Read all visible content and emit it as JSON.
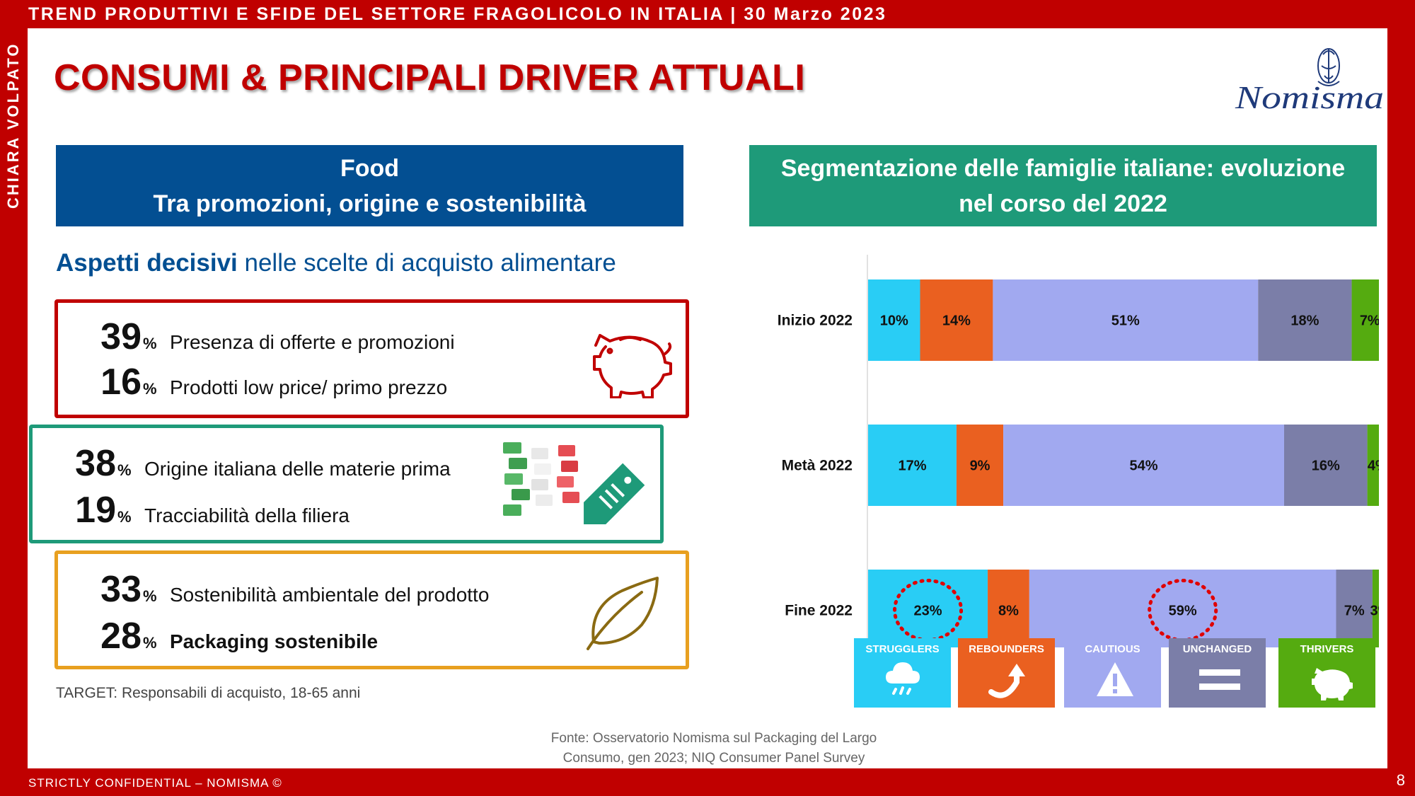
{
  "header": {
    "top_title": "TREND PRODUTTIVI E SFIDE DEL SETTORE FRAGOLICOLO IN ITALIA | 30 Marzo 2023",
    "side_label": "CHIARA VOLPATO",
    "main_title": "CONSUMI & PRINCIPALI DRIVER ATTUALI",
    "logo_text": "Nomisma"
  },
  "left": {
    "heading_line1": "Food",
    "heading_line2": "Tra promozioni, origine e sostenibilità",
    "subtitle_bold": "Aspetti decisivi",
    "subtitle_rest": " nelle scelte di acquisto alimentare",
    "boxes": [
      {
        "color": "#c00000",
        "icon": "piggy-bank-icon",
        "stats": [
          {
            "value": "39",
            "unit": "%",
            "label": "Presenza di offerte e promozioni"
          },
          {
            "value": "16",
            "unit": "%",
            "label": "Prodotti low price/ primo prezzo"
          }
        ]
      },
      {
        "color": "#1e9a79",
        "icon": "italian-flag-tag-icon",
        "stats": [
          {
            "value": "38",
            "unit": "%",
            "label": "Origine italiana delle materie prima"
          },
          {
            "value": "19",
            "unit": "%",
            "label": "Tracciabilità della filiera"
          }
        ]
      },
      {
        "color": "#e8a020",
        "icon": "leaf-icon",
        "stats": [
          {
            "value": "33",
            "unit": "%",
            "label": "Sostenibilità ambientale del prodotto"
          },
          {
            "value": "28",
            "unit": "%",
            "label": "Packaging sostenibile"
          }
        ]
      }
    ],
    "target": "TARGET: Responsabili di acquisto, 18-65 anni"
  },
  "right": {
    "heading_line1": "Segmentazione delle famiglie italiane: evoluzione",
    "heading_line2": "nel corso del 2022"
  },
  "chart_data": {
    "type": "bar",
    "orientation": "horizontal",
    "stacked": true,
    "categories": [
      "Inizio 2022",
      "Metà 2022",
      "Fine 2022"
    ],
    "series": [
      {
        "name": "STRUGGLERS",
        "color": "#29cdf5",
        "values": [
          10,
          17,
          23
        ]
      },
      {
        "name": "REBOUNDERS",
        "color": "#ea6020",
        "values": [
          14,
          9,
          8
        ]
      },
      {
        "name": "CAUTIOUS",
        "color": "#a1a9f0",
        "values": [
          51,
          54,
          59
        ]
      },
      {
        "name": "UNCHANGED",
        "color": "#7b7ea8",
        "values": [
          18,
          16,
          7
        ]
      },
      {
        "name": "THRIVERS",
        "color": "#55ab10",
        "values": [
          7,
          4,
          3
        ]
      }
    ],
    "highlighted": [
      {
        "category": "Fine 2022",
        "series": "STRUGGLERS"
      },
      {
        "category": "Fine 2022",
        "series": "CAUTIOUS"
      }
    ],
    "legend_position": "bottom"
  },
  "legend_icons": [
    "rain-cloud-icon",
    "rebound-arrow-icon",
    "warning-icon",
    "equals-icon",
    "piggy-bank-icon"
  ],
  "source": {
    "line1": "Fonte: Osservatorio Nomisma sul Packaging del Largo",
    "line2": "Consumo, gen 2023; NIQ Consumer Panel Survey"
  },
  "footer": {
    "confidential": "STRICTLY CONFIDENTIAL – NOMISMA ©",
    "page": "8"
  }
}
